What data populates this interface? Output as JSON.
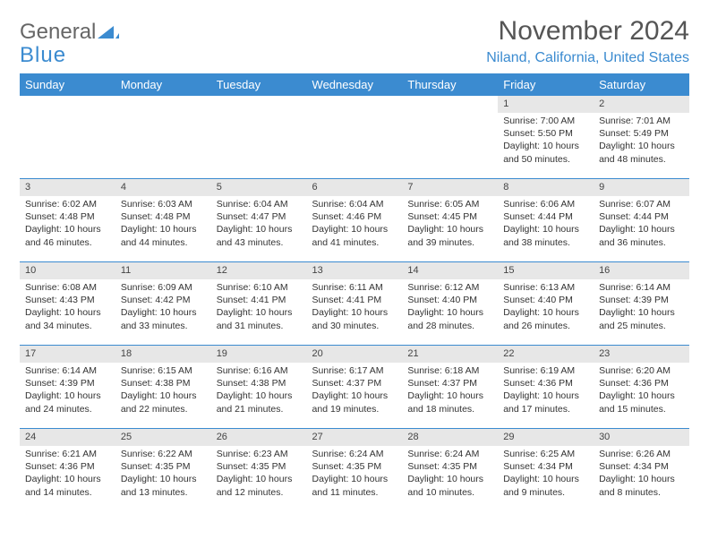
{
  "logo": {
    "word1": "General",
    "word2": "Blue"
  },
  "title": "November 2024",
  "location": "Niland, California, United States",
  "colors": {
    "header_bg": "#3b8bd0",
    "header_text": "#ffffff",
    "daynum_bg": "#e7e7e7",
    "border": "#3b8bd0",
    "body_text": "#333333",
    "logo_gray": "#666666",
    "logo_blue": "#3b8bd0"
  },
  "weekday_labels": [
    "Sunday",
    "Monday",
    "Tuesday",
    "Wednesday",
    "Thursday",
    "Friday",
    "Saturday"
  ],
  "weeks": [
    [
      {
        "n": "",
        "text": [
          "",
          "",
          "",
          ""
        ]
      },
      {
        "n": "",
        "text": [
          "",
          "",
          "",
          ""
        ]
      },
      {
        "n": "",
        "text": [
          "",
          "",
          "",
          ""
        ]
      },
      {
        "n": "",
        "text": [
          "",
          "",
          "",
          ""
        ]
      },
      {
        "n": "",
        "text": [
          "",
          "",
          "",
          ""
        ]
      },
      {
        "n": "1",
        "text": [
          "Sunrise: 7:00 AM",
          "Sunset: 5:50 PM",
          "Daylight: 10 hours",
          "and 50 minutes."
        ]
      },
      {
        "n": "2",
        "text": [
          "Sunrise: 7:01 AM",
          "Sunset: 5:49 PM",
          "Daylight: 10 hours",
          "and 48 minutes."
        ]
      }
    ],
    [
      {
        "n": "3",
        "text": [
          "Sunrise: 6:02 AM",
          "Sunset: 4:48 PM",
          "Daylight: 10 hours",
          "and 46 minutes."
        ]
      },
      {
        "n": "4",
        "text": [
          "Sunrise: 6:03 AM",
          "Sunset: 4:48 PM",
          "Daylight: 10 hours",
          "and 44 minutes."
        ]
      },
      {
        "n": "5",
        "text": [
          "Sunrise: 6:04 AM",
          "Sunset: 4:47 PM",
          "Daylight: 10 hours",
          "and 43 minutes."
        ]
      },
      {
        "n": "6",
        "text": [
          "Sunrise: 6:04 AM",
          "Sunset: 4:46 PM",
          "Daylight: 10 hours",
          "and 41 minutes."
        ]
      },
      {
        "n": "7",
        "text": [
          "Sunrise: 6:05 AM",
          "Sunset: 4:45 PM",
          "Daylight: 10 hours",
          "and 39 minutes."
        ]
      },
      {
        "n": "8",
        "text": [
          "Sunrise: 6:06 AM",
          "Sunset: 4:44 PM",
          "Daylight: 10 hours",
          "and 38 minutes."
        ]
      },
      {
        "n": "9",
        "text": [
          "Sunrise: 6:07 AM",
          "Sunset: 4:44 PM",
          "Daylight: 10 hours",
          "and 36 minutes."
        ]
      }
    ],
    [
      {
        "n": "10",
        "text": [
          "Sunrise: 6:08 AM",
          "Sunset: 4:43 PM",
          "Daylight: 10 hours",
          "and 34 minutes."
        ]
      },
      {
        "n": "11",
        "text": [
          "Sunrise: 6:09 AM",
          "Sunset: 4:42 PM",
          "Daylight: 10 hours",
          "and 33 minutes."
        ]
      },
      {
        "n": "12",
        "text": [
          "Sunrise: 6:10 AM",
          "Sunset: 4:41 PM",
          "Daylight: 10 hours",
          "and 31 minutes."
        ]
      },
      {
        "n": "13",
        "text": [
          "Sunrise: 6:11 AM",
          "Sunset: 4:41 PM",
          "Daylight: 10 hours",
          "and 30 minutes."
        ]
      },
      {
        "n": "14",
        "text": [
          "Sunrise: 6:12 AM",
          "Sunset: 4:40 PM",
          "Daylight: 10 hours",
          "and 28 minutes."
        ]
      },
      {
        "n": "15",
        "text": [
          "Sunrise: 6:13 AM",
          "Sunset: 4:40 PM",
          "Daylight: 10 hours",
          "and 26 minutes."
        ]
      },
      {
        "n": "16",
        "text": [
          "Sunrise: 6:14 AM",
          "Sunset: 4:39 PM",
          "Daylight: 10 hours",
          "and 25 minutes."
        ]
      }
    ],
    [
      {
        "n": "17",
        "text": [
          "Sunrise: 6:14 AM",
          "Sunset: 4:39 PM",
          "Daylight: 10 hours",
          "and 24 minutes."
        ]
      },
      {
        "n": "18",
        "text": [
          "Sunrise: 6:15 AM",
          "Sunset: 4:38 PM",
          "Daylight: 10 hours",
          "and 22 minutes."
        ]
      },
      {
        "n": "19",
        "text": [
          "Sunrise: 6:16 AM",
          "Sunset: 4:38 PM",
          "Daylight: 10 hours",
          "and 21 minutes."
        ]
      },
      {
        "n": "20",
        "text": [
          "Sunrise: 6:17 AM",
          "Sunset: 4:37 PM",
          "Daylight: 10 hours",
          "and 19 minutes."
        ]
      },
      {
        "n": "21",
        "text": [
          "Sunrise: 6:18 AM",
          "Sunset: 4:37 PM",
          "Daylight: 10 hours",
          "and 18 minutes."
        ]
      },
      {
        "n": "22",
        "text": [
          "Sunrise: 6:19 AM",
          "Sunset: 4:36 PM",
          "Daylight: 10 hours",
          "and 17 minutes."
        ]
      },
      {
        "n": "23",
        "text": [
          "Sunrise: 6:20 AM",
          "Sunset: 4:36 PM",
          "Daylight: 10 hours",
          "and 15 minutes."
        ]
      }
    ],
    [
      {
        "n": "24",
        "text": [
          "Sunrise: 6:21 AM",
          "Sunset: 4:36 PM",
          "Daylight: 10 hours",
          "and 14 minutes."
        ]
      },
      {
        "n": "25",
        "text": [
          "Sunrise: 6:22 AM",
          "Sunset: 4:35 PM",
          "Daylight: 10 hours",
          "and 13 minutes."
        ]
      },
      {
        "n": "26",
        "text": [
          "Sunrise: 6:23 AM",
          "Sunset: 4:35 PM",
          "Daylight: 10 hours",
          "and 12 minutes."
        ]
      },
      {
        "n": "27",
        "text": [
          "Sunrise: 6:24 AM",
          "Sunset: 4:35 PM",
          "Daylight: 10 hours",
          "and 11 minutes."
        ]
      },
      {
        "n": "28",
        "text": [
          "Sunrise: 6:24 AM",
          "Sunset: 4:35 PM",
          "Daylight: 10 hours",
          "and 10 minutes."
        ]
      },
      {
        "n": "29",
        "text": [
          "Sunrise: 6:25 AM",
          "Sunset: 4:34 PM",
          "Daylight: 10 hours",
          "and 9 minutes."
        ]
      },
      {
        "n": "30",
        "text": [
          "Sunrise: 6:26 AM",
          "Sunset: 4:34 PM",
          "Daylight: 10 hours",
          "and 8 minutes."
        ]
      }
    ]
  ]
}
